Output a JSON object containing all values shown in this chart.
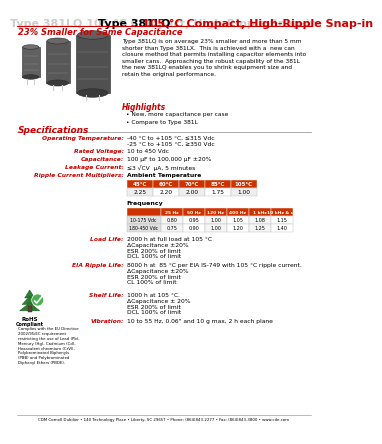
{
  "title_black": "Type 381LQ ",
  "title_red": "105 °C Compact, High-Ripple Snap-in",
  "subtitle": "23% Smaller for Same Capacitance",
  "description": "Type 381LQ is on average 23% smaller and more than 5 mm\nshorter than Type 381LX.  This is achieved with a  new can\nclosure method that permits installing capacitor elements into\nsmaller cans.  Approaching the robust capability of the 381L\nthe new 381LQ enables you to shrink equipment size and\nretain the original performance.",
  "highlights_title": "Highlights",
  "highlights": [
    "New, more capacitance per case",
    "Compare to Type 381L"
  ],
  "specs_title": "Specifications",
  "spec_labels": [
    "Operating Temperature:",
    "Rated Voltage:",
    "Capacitance:",
    "Leakage Current:",
    "Ripple Current Multipliers:"
  ],
  "spec_values": [
    "-40 °C to +105 °C, ≤315 Vdc\n-25 °C to +105 °C, ≥350 Vdc",
    "10 to 450 Vdc",
    "100 μF to 100,000 μF ±20%",
    "≤3 √CV  μA, 5 minutes",
    "Ambient Temperature"
  ],
  "ambient_temp_headers": [
    "45°C",
    "60°C",
    "70°C",
    "85°C",
    "105°C"
  ],
  "ambient_temp_values": [
    "2.25",
    "2.20",
    "2.00",
    "1.75",
    "1.00"
  ],
  "freq_label": "Frequency",
  "freq_headers": [
    "25 Hz",
    "50 Hz",
    "120 Hz",
    "400 Hz",
    "1 kHz",
    "10 kHz & up"
  ],
  "freq_row1_label": "10-175 Vdc",
  "freq_row1": [
    "0.80",
    "0.95",
    "1.00",
    "1.05",
    "1.08",
    "1.15"
  ],
  "freq_row2_label": "180-450 Vdc",
  "freq_row2": [
    "0.75",
    "0.90",
    "1.00",
    "1.20",
    "1.25",
    "1.40"
  ],
  "load_life_label": "Load Life:",
  "load_life": "2000 h at full load at 105 °C\nΔCapacitance ±20%\nESR 200% of limit\nDCL 100% of limit",
  "eia_label": "EIA Ripple Life:",
  "eia": "8000 h at  85 °C per EIA IS-749 with 105 °C ripple current.\nΔCapacitance ±20%\nESR 200% of limit\nCL 100% of limit",
  "shelf_label": "Shelf Life:",
  "shelf": "1000 h at 105 °C.\nΔCapacitance ± 20%\nESR 200% of limit\nDCL 100% of limit",
  "vib_label": "Vibration:",
  "vib": "10 to 55 Hz, 0.06\" and 10 g max, 2 h each plane",
  "footer": "CDM Cornell Dubilier • 140 Technology Place • Liberty, SC 29657 • Phone: (864)843-2277 • Fax: (864)843-3800 • www.cde.com",
  "rohs_sub": "Complies with the EU Directive\n2002/95/EC requirement\nrestricting the use of Lead (Pb),\nMercury (Hg), Cadmium (Cd),\nHexavalent chromium (CrVI),\nPolybrominated Biphenyls\n(PBB) and Polybrominated\nDiphenyl Ethers (PBDE).",
  "red_color": "#cc0000",
  "table_header_bg": "#cc3300",
  "bg_color": "#ffffff"
}
